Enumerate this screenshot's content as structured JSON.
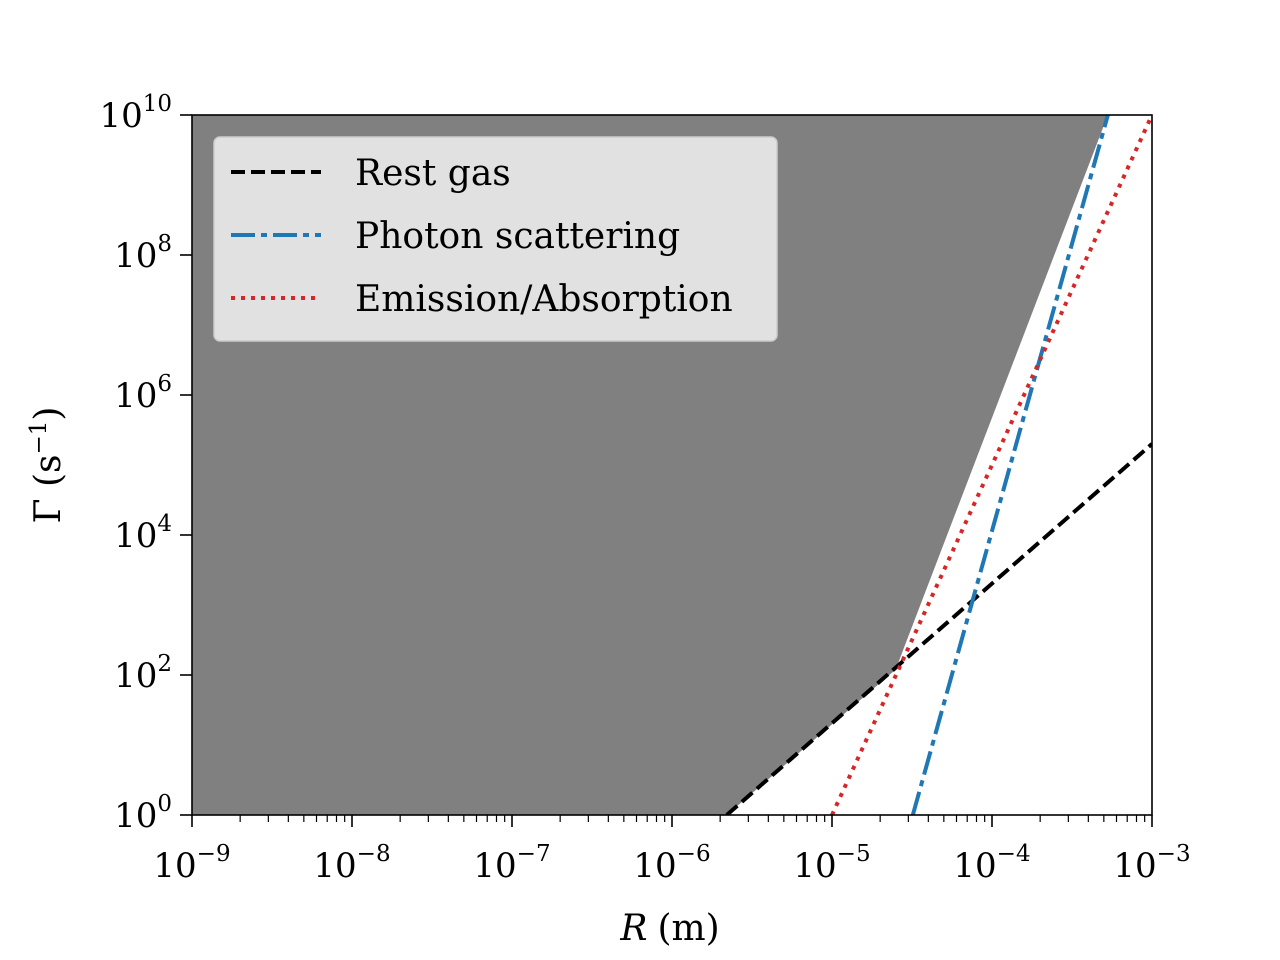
{
  "chart_data": {
    "type": "line",
    "title": "",
    "xlabel_var": "R",
    "xlabel_unit": "(m)",
    "ylabel_main": "Γ (s",
    "ylabel_sup": "−1",
    "ylabel_end": ")",
    "xscale": "log",
    "yscale": "log",
    "xlim": [
      1e-09,
      0.001
    ],
    "ylim": [
      1,
      10000000000.0
    ],
    "x_ticks": [
      {
        "base": "10",
        "exp": "−9"
      },
      {
        "base": "10",
        "exp": "−8"
      },
      {
        "base": "10",
        "exp": "−7"
      },
      {
        "base": "10",
        "exp": "−6"
      },
      {
        "base": "10",
        "exp": "−5"
      },
      {
        "base": "10",
        "exp": "−4"
      },
      {
        "base": "10",
        "exp": "−3"
      }
    ],
    "y_ticks": [
      {
        "base": "10",
        "exp": "0"
      },
      {
        "base": "10",
        "exp": "2"
      },
      {
        "base": "10",
        "exp": "4"
      },
      {
        "base": "10",
        "exp": "6"
      },
      {
        "base": "10",
        "exp": "8"
      },
      {
        "base": "10",
        "exp": "10"
      }
    ],
    "shaded_region": {
      "description": "excluded region (upper envelope of rates)",
      "color": "#808080",
      "boundary_x": [
        1e-09,
        2.2e-06,
        2.5e-05,
        0.00053
      ],
      "boundary_y": [
        1,
        1,
        120,
        10000000000.0
      ]
    },
    "series": [
      {
        "name": "Rest gas",
        "color": "#000000",
        "style": "dashed",
        "x": [
          2.2e-06,
          0.001
        ],
        "y": [
          1,
          200000.0
        ]
      },
      {
        "name": "Photon scattering",
        "color": "#1f77b4",
        "style": "dashdot",
        "x": [
          3.2e-05,
          0.00053
        ],
        "y": [
          1,
          10000000000.0
        ]
      },
      {
        "name": "Emission/Absorption",
        "color": "#d62728",
        "style": "dotted",
        "x": [
          1e-05,
          0.001
        ],
        "y": [
          1,
          10000000000.0
        ]
      }
    ],
    "legend_position": "top-left"
  }
}
